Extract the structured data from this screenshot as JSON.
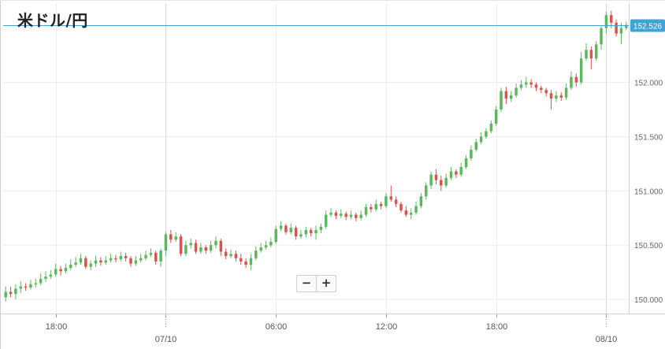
{
  "title": "米ドル/円",
  "zoom": {
    "minus_label": "−",
    "plus_label": "+"
  },
  "colors": {
    "up": "#5cb85c",
    "down": "#d9534f",
    "price_line": "#3ea3d6",
    "price_badge": "#3ea3d6",
    "grid": "#ececec"
  },
  "chart_data": {
    "type": "candlestick",
    "title": "米ドル/円",
    "current_price": 152.526,
    "ylim": [
      149.87,
      152.73
    ],
    "y_ticks": [
      150.0,
      150.5,
      151.0,
      151.5,
      152.0
    ],
    "y_tick_labels": [
      "150.000",
      "150.500",
      "151.000",
      "151.500",
      "152.000"
    ],
    "price_label": "152.526",
    "x_ticks": [
      {
        "label": "18:00",
        "candle": 10
      },
      {
        "label": "07/10",
        "candle": 32,
        "date": true
      },
      {
        "label": "06:00",
        "candle": 54
      },
      {
        "label": "12:00",
        "candle": 76
      },
      {
        "label": "18:00",
        "candle": 98
      },
      {
        "label": "08/10",
        "candle": 120,
        "date": true
      }
    ],
    "grid": true,
    "candles": [
      [
        150.02,
        150.07,
        150.12,
        149.98
      ],
      [
        150.07,
        150.05,
        150.12,
        150.02
      ],
      [
        150.05,
        150.1,
        150.14,
        150.0
      ],
      [
        150.1,
        150.12,
        150.17,
        150.06
      ],
      [
        150.12,
        150.11,
        150.15,
        150.08
      ],
      [
        150.11,
        150.14,
        150.18,
        150.09
      ],
      [
        150.14,
        150.15,
        150.19,
        150.11
      ],
      [
        150.15,
        150.19,
        150.24,
        150.13
      ],
      [
        150.19,
        150.21,
        150.26,
        150.16
      ],
      [
        150.21,
        150.23,
        150.27,
        150.19
      ],
      [
        150.23,
        150.28,
        150.33,
        150.21
      ],
      [
        150.28,
        150.26,
        150.31,
        150.22
      ],
      [
        150.26,
        150.29,
        150.33,
        150.24
      ],
      [
        150.29,
        150.32,
        150.37,
        150.27
      ],
      [
        150.32,
        150.34,
        150.39,
        150.3
      ],
      [
        150.34,
        150.38,
        150.42,
        150.32
      ],
      [
        150.38,
        150.3,
        150.4,
        150.28
      ],
      [
        150.3,
        150.33,
        150.36,
        150.27
      ],
      [
        150.33,
        150.36,
        150.4,
        150.3
      ],
      [
        150.36,
        150.34,
        150.39,
        150.31
      ],
      [
        150.34,
        150.36,
        150.4,
        150.32
      ],
      [
        150.36,
        150.38,
        150.42,
        150.34
      ],
      [
        150.38,
        150.37,
        150.41,
        150.34
      ],
      [
        150.37,
        150.4,
        150.44,
        150.35
      ],
      [
        150.4,
        150.38,
        150.43,
        150.35
      ],
      [
        150.38,
        150.33,
        150.4,
        150.3
      ],
      [
        150.33,
        150.36,
        150.4,
        150.31
      ],
      [
        150.36,
        150.38,
        150.42,
        150.34
      ],
      [
        150.38,
        150.41,
        150.45,
        150.36
      ],
      [
        150.41,
        150.43,
        150.47,
        150.39
      ],
      [
        150.43,
        150.35,
        150.45,
        150.32
      ],
      [
        150.35,
        150.45,
        150.47,
        150.3
      ],
      [
        150.45,
        150.6,
        150.62,
        150.4
      ],
      [
        150.6,
        150.55,
        150.64,
        150.52
      ],
      [
        150.55,
        150.58,
        150.62,
        150.53
      ],
      [
        150.58,
        150.42,
        150.6,
        150.4
      ],
      [
        150.42,
        150.5,
        150.54,
        150.4
      ],
      [
        150.5,
        150.52,
        150.56,
        150.47
      ],
      [
        150.52,
        150.44,
        150.55,
        150.42
      ],
      [
        150.44,
        150.48,
        150.52,
        150.42
      ],
      [
        150.48,
        150.45,
        150.5,
        150.42
      ],
      [
        150.45,
        150.5,
        150.54,
        150.43
      ],
      [
        150.5,
        150.54,
        150.58,
        150.47
      ],
      [
        150.54,
        150.44,
        150.56,
        150.4
      ],
      [
        150.44,
        150.4,
        150.47,
        150.37
      ],
      [
        150.4,
        150.42,
        150.46,
        150.38
      ],
      [
        150.42,
        150.38,
        150.45,
        150.35
      ],
      [
        150.38,
        150.35,
        150.42,
        150.32
      ],
      [
        150.35,
        150.32,
        150.38,
        150.29
      ],
      [
        150.32,
        150.38,
        150.42,
        150.27
      ],
      [
        150.38,
        150.45,
        150.49,
        150.36
      ],
      [
        150.45,
        150.48,
        150.52,
        150.43
      ],
      [
        150.48,
        150.5,
        150.54,
        150.46
      ],
      [
        150.5,
        150.53,
        150.57,
        150.48
      ],
      [
        150.53,
        150.65,
        150.68,
        150.51
      ],
      [
        150.65,
        150.68,
        150.72,
        150.63
      ],
      [
        150.68,
        150.62,
        150.7,
        150.6
      ],
      [
        150.62,
        150.66,
        150.7,
        150.6
      ],
      [
        150.66,
        150.58,
        150.68,
        150.55
      ],
      [
        150.58,
        150.6,
        150.64,
        150.56
      ],
      [
        150.6,
        150.64,
        150.67,
        150.57
      ],
      [
        150.64,
        150.61,
        150.66,
        150.58
      ],
      [
        150.61,
        150.64,
        150.68,
        150.55
      ],
      [
        150.64,
        150.67,
        150.7,
        150.61
      ],
      [
        150.67,
        150.78,
        150.82,
        150.65
      ],
      [
        150.78,
        150.8,
        150.84,
        150.76
      ],
      [
        150.8,
        150.77,
        150.82,
        150.74
      ],
      [
        150.77,
        150.79,
        150.83,
        150.75
      ],
      [
        150.79,
        150.76,
        150.81,
        150.73
      ],
      [
        150.76,
        150.78,
        150.82,
        150.74
      ],
      [
        150.78,
        150.75,
        150.8,
        150.72
      ],
      [
        150.75,
        150.78,
        150.82,
        150.73
      ],
      [
        150.78,
        150.85,
        150.88,
        150.76
      ],
      [
        150.85,
        150.83,
        150.88,
        150.8
      ],
      [
        150.83,
        150.88,
        150.92,
        150.81
      ],
      [
        150.88,
        150.86,
        150.9,
        150.83
      ],
      [
        150.86,
        150.95,
        150.98,
        150.84
      ],
      [
        150.95,
        150.92,
        151.05,
        150.9
      ],
      [
        150.92,
        150.88,
        150.95,
        150.85
      ],
      [
        150.88,
        150.82,
        150.9,
        150.8
      ],
      [
        150.82,
        150.78,
        150.86,
        150.76
      ],
      [
        150.78,
        150.8,
        150.84,
        150.74
      ],
      [
        150.8,
        150.86,
        150.9,
        150.78
      ],
      [
        150.86,
        150.95,
        150.98,
        150.84
      ],
      [
        150.95,
        151.05,
        151.08,
        150.92
      ],
      [
        151.05,
        151.15,
        151.18,
        151.02
      ],
      [
        151.15,
        151.1,
        151.2,
        151.06
      ],
      [
        151.1,
        151.05,
        151.14,
        151.0
      ],
      [
        151.05,
        151.12,
        151.16,
        151.03
      ],
      [
        151.12,
        151.18,
        151.22,
        151.1
      ],
      [
        151.18,
        151.15,
        151.2,
        151.12
      ],
      [
        151.15,
        151.22,
        151.26,
        151.13
      ],
      [
        151.22,
        151.3,
        151.33,
        151.2
      ],
      [
        151.3,
        151.38,
        151.42,
        151.28
      ],
      [
        151.38,
        151.45,
        151.48,
        151.36
      ],
      [
        151.45,
        151.5,
        151.54,
        151.43
      ],
      [
        151.5,
        151.55,
        151.58,
        151.48
      ],
      [
        151.55,
        151.62,
        151.65,
        151.53
      ],
      [
        151.62,
        151.75,
        151.78,
        151.6
      ],
      [
        151.75,
        151.92,
        151.95,
        151.73
      ],
      [
        151.92,
        151.85,
        151.96,
        151.8
      ],
      [
        151.85,
        151.88,
        151.92,
        151.82
      ],
      [
        151.88,
        151.95,
        151.99,
        151.86
      ],
      [
        151.95,
        151.98,
        152.02,
        151.93
      ],
      [
        151.98,
        152.0,
        152.05,
        151.95
      ],
      [
        152.0,
        151.98,
        152.03,
        151.95
      ],
      [
        151.98,
        151.95,
        152.0,
        151.92
      ],
      [
        151.95,
        151.93,
        151.97,
        151.9
      ],
      [
        151.93,
        151.9,
        151.95,
        151.87
      ],
      [
        151.9,
        151.85,
        151.93,
        151.75
      ],
      [
        151.85,
        151.88,
        151.92,
        151.82
      ],
      [
        151.88,
        151.86,
        151.91,
        151.83
      ],
      [
        151.86,
        151.95,
        151.99,
        151.84
      ],
      [
        151.95,
        152.05,
        152.1,
        151.93
      ],
      [
        152.05,
        152.0,
        152.08,
        151.96
      ],
      [
        152.0,
        152.22,
        152.28,
        151.98
      ],
      [
        152.22,
        152.3,
        152.36,
        152.2
      ],
      [
        152.3,
        152.22,
        152.33,
        152.12
      ],
      [
        152.22,
        152.35,
        152.38,
        152.2
      ],
      [
        152.35,
        152.5,
        152.52,
        152.3
      ],
      [
        152.5,
        152.62,
        152.65,
        152.45
      ],
      [
        152.62,
        152.55,
        152.66,
        152.5
      ],
      [
        152.55,
        152.45,
        152.58,
        152.42
      ],
      [
        152.45,
        152.5,
        152.55,
        152.35
      ],
      [
        152.5,
        152.53,
        152.56,
        152.48
      ]
    ]
  }
}
